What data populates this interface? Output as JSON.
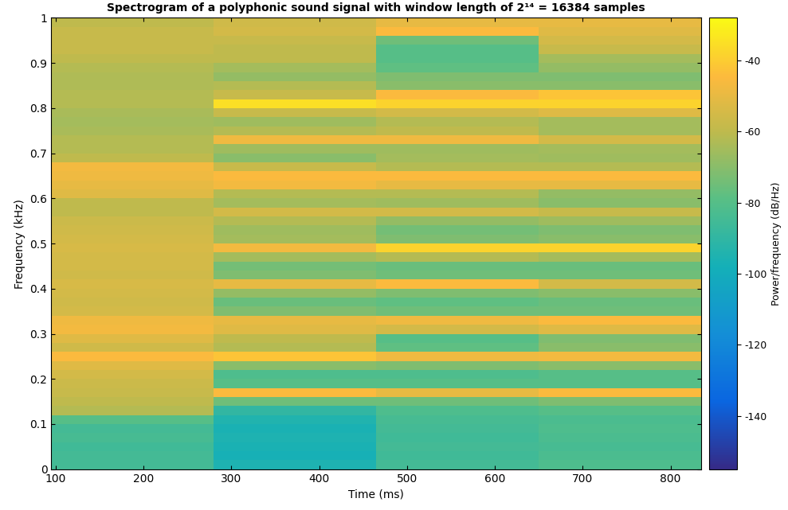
{
  "chart_data": {
    "type": "heatmap",
    "title": "Spectrogram of a polyphonic sound signal with window length of 2¹⁴ = 16384 samples",
    "x_label": "Time (ms)",
    "y_label": "Frequency (kHz)",
    "x_edges": [
      95,
      280,
      465,
      650,
      835
    ],
    "y_edges": [
      0,
      0.02,
      0.04,
      0.06,
      0.08,
      0.1,
      0.12,
      0.14,
      0.16,
      0.18,
      0.2,
      0.22,
      0.24,
      0.26,
      0.28,
      0.3,
      0.32,
      0.34,
      0.36,
      0.38,
      0.4,
      0.42,
      0.44,
      0.46,
      0.48,
      0.5,
      0.52,
      0.54,
      0.56,
      0.58,
      0.6,
      0.62,
      0.64,
      0.66,
      0.68,
      0.7,
      0.72,
      0.74,
      0.76,
      0.78,
      0.8,
      0.82,
      0.84,
      0.86,
      0.88,
      0.9,
      0.92,
      0.94,
      0.96,
      0.98,
      1
    ],
    "cells": [
      [
        -85,
        -95,
        -85,
        -82
      ],
      [
        -85,
        -97,
        -86,
        -83
      ],
      [
        -86,
        -96,
        -85,
        -84
      ],
      [
        -84,
        -95,
        -86,
        -83
      ],
      [
        -85,
        -96,
        -85,
        -82
      ],
      [
        -80,
        -94,
        -84,
        -83
      ],
      [
        -62,
        -90,
        -82,
        -80
      ],
      [
        -60,
        -75,
        -75,
        -72
      ],
      [
        -58,
        -45,
        -50,
        -45
      ],
      [
        -57,
        -80,
        -80,
        -80
      ],
      [
        -55,
        -82,
        -82,
        -80
      ],
      [
        -52,
        -70,
        -72,
        -70
      ],
      [
        -45,
        -42,
        -48,
        -47
      ],
      [
        -56,
        -62,
        -78,
        -70
      ],
      [
        -52,
        -60,
        -80,
        -72
      ],
      [
        -47,
        -52,
        -55,
        -52
      ],
      [
        -48,
        -50,
        -48,
        -45
      ],
      [
        -55,
        -72,
        -75,
        -75
      ],
      [
        -56,
        -76,
        -78,
        -76
      ],
      [
        -55,
        -68,
        -72,
        -70
      ],
      [
        -54,
        -50,
        -45,
        -55
      ],
      [
        -56,
        -72,
        -75,
        -75
      ],
      [
        -55,
        -74,
        -76,
        -76
      ],
      [
        -55,
        -65,
        -62,
        -65
      ],
      [
        -54,
        -47,
        -38,
        -38
      ],
      [
        -55,
        -65,
        -72,
        -70
      ],
      [
        -56,
        -66,
        -74,
        -72
      ],
      [
        -57,
        -62,
        -68,
        -66
      ],
      [
        -60,
        -55,
        -55,
        -58
      ],
      [
        -60,
        -65,
        -66,
        -70
      ],
      [
        -52,
        -62,
        -62,
        -68
      ],
      [
        -50,
        -47,
        -50,
        -50
      ],
      [
        -48,
        -45,
        -45,
        -45
      ],
      [
        -47,
        -58,
        -62,
        -62
      ],
      [
        -60,
        -70,
        -65,
        -66
      ],
      [
        -62,
        -66,
        -66,
        -65
      ],
      [
        -62,
        -48,
        -48,
        -55
      ],
      [
        -64,
        -62,
        -60,
        -65
      ],
      [
        -65,
        -66,
        -62,
        -65
      ],
      [
        -64,
        -58,
        -55,
        -52
      ],
      [
        -62,
        -35,
        -38,
        -38
      ],
      [
        -62,
        -58,
        -45,
        -42
      ],
      [
        -63,
        -62,
        -70,
        -70
      ],
      [
        -63,
        -68,
        -72,
        -72
      ],
      [
        -62,
        -65,
        -78,
        -68
      ],
      [
        -60,
        -60,
        -80,
        -65
      ],
      [
        -58,
        -60,
        -80,
        -58
      ],
      [
        -58,
        -58,
        -75,
        -55
      ],
      [
        -58,
        -55,
        -45,
        -52
      ],
      [
        -60,
        -56,
        -50,
        -50
      ]
    ],
    "xlim": [
      95,
      835
    ],
    "xticks": [
      100,
      200,
      300,
      400,
      500,
      600,
      700,
      800
    ],
    "ylim": [
      0,
      1
    ],
    "yticks": [
      0,
      0.1,
      0.2,
      0.3,
      0.4,
      0.5,
      0.6,
      0.7,
      0.8,
      0.9,
      1
    ],
    "grid": false,
    "colorbar": {
      "label": "Power/frequency (dB/Hz)",
      "range": [
        -155,
        -28
      ],
      "ticks": [
        -140,
        -120,
        -100,
        -80,
        -60,
        -40
      ]
    }
  }
}
